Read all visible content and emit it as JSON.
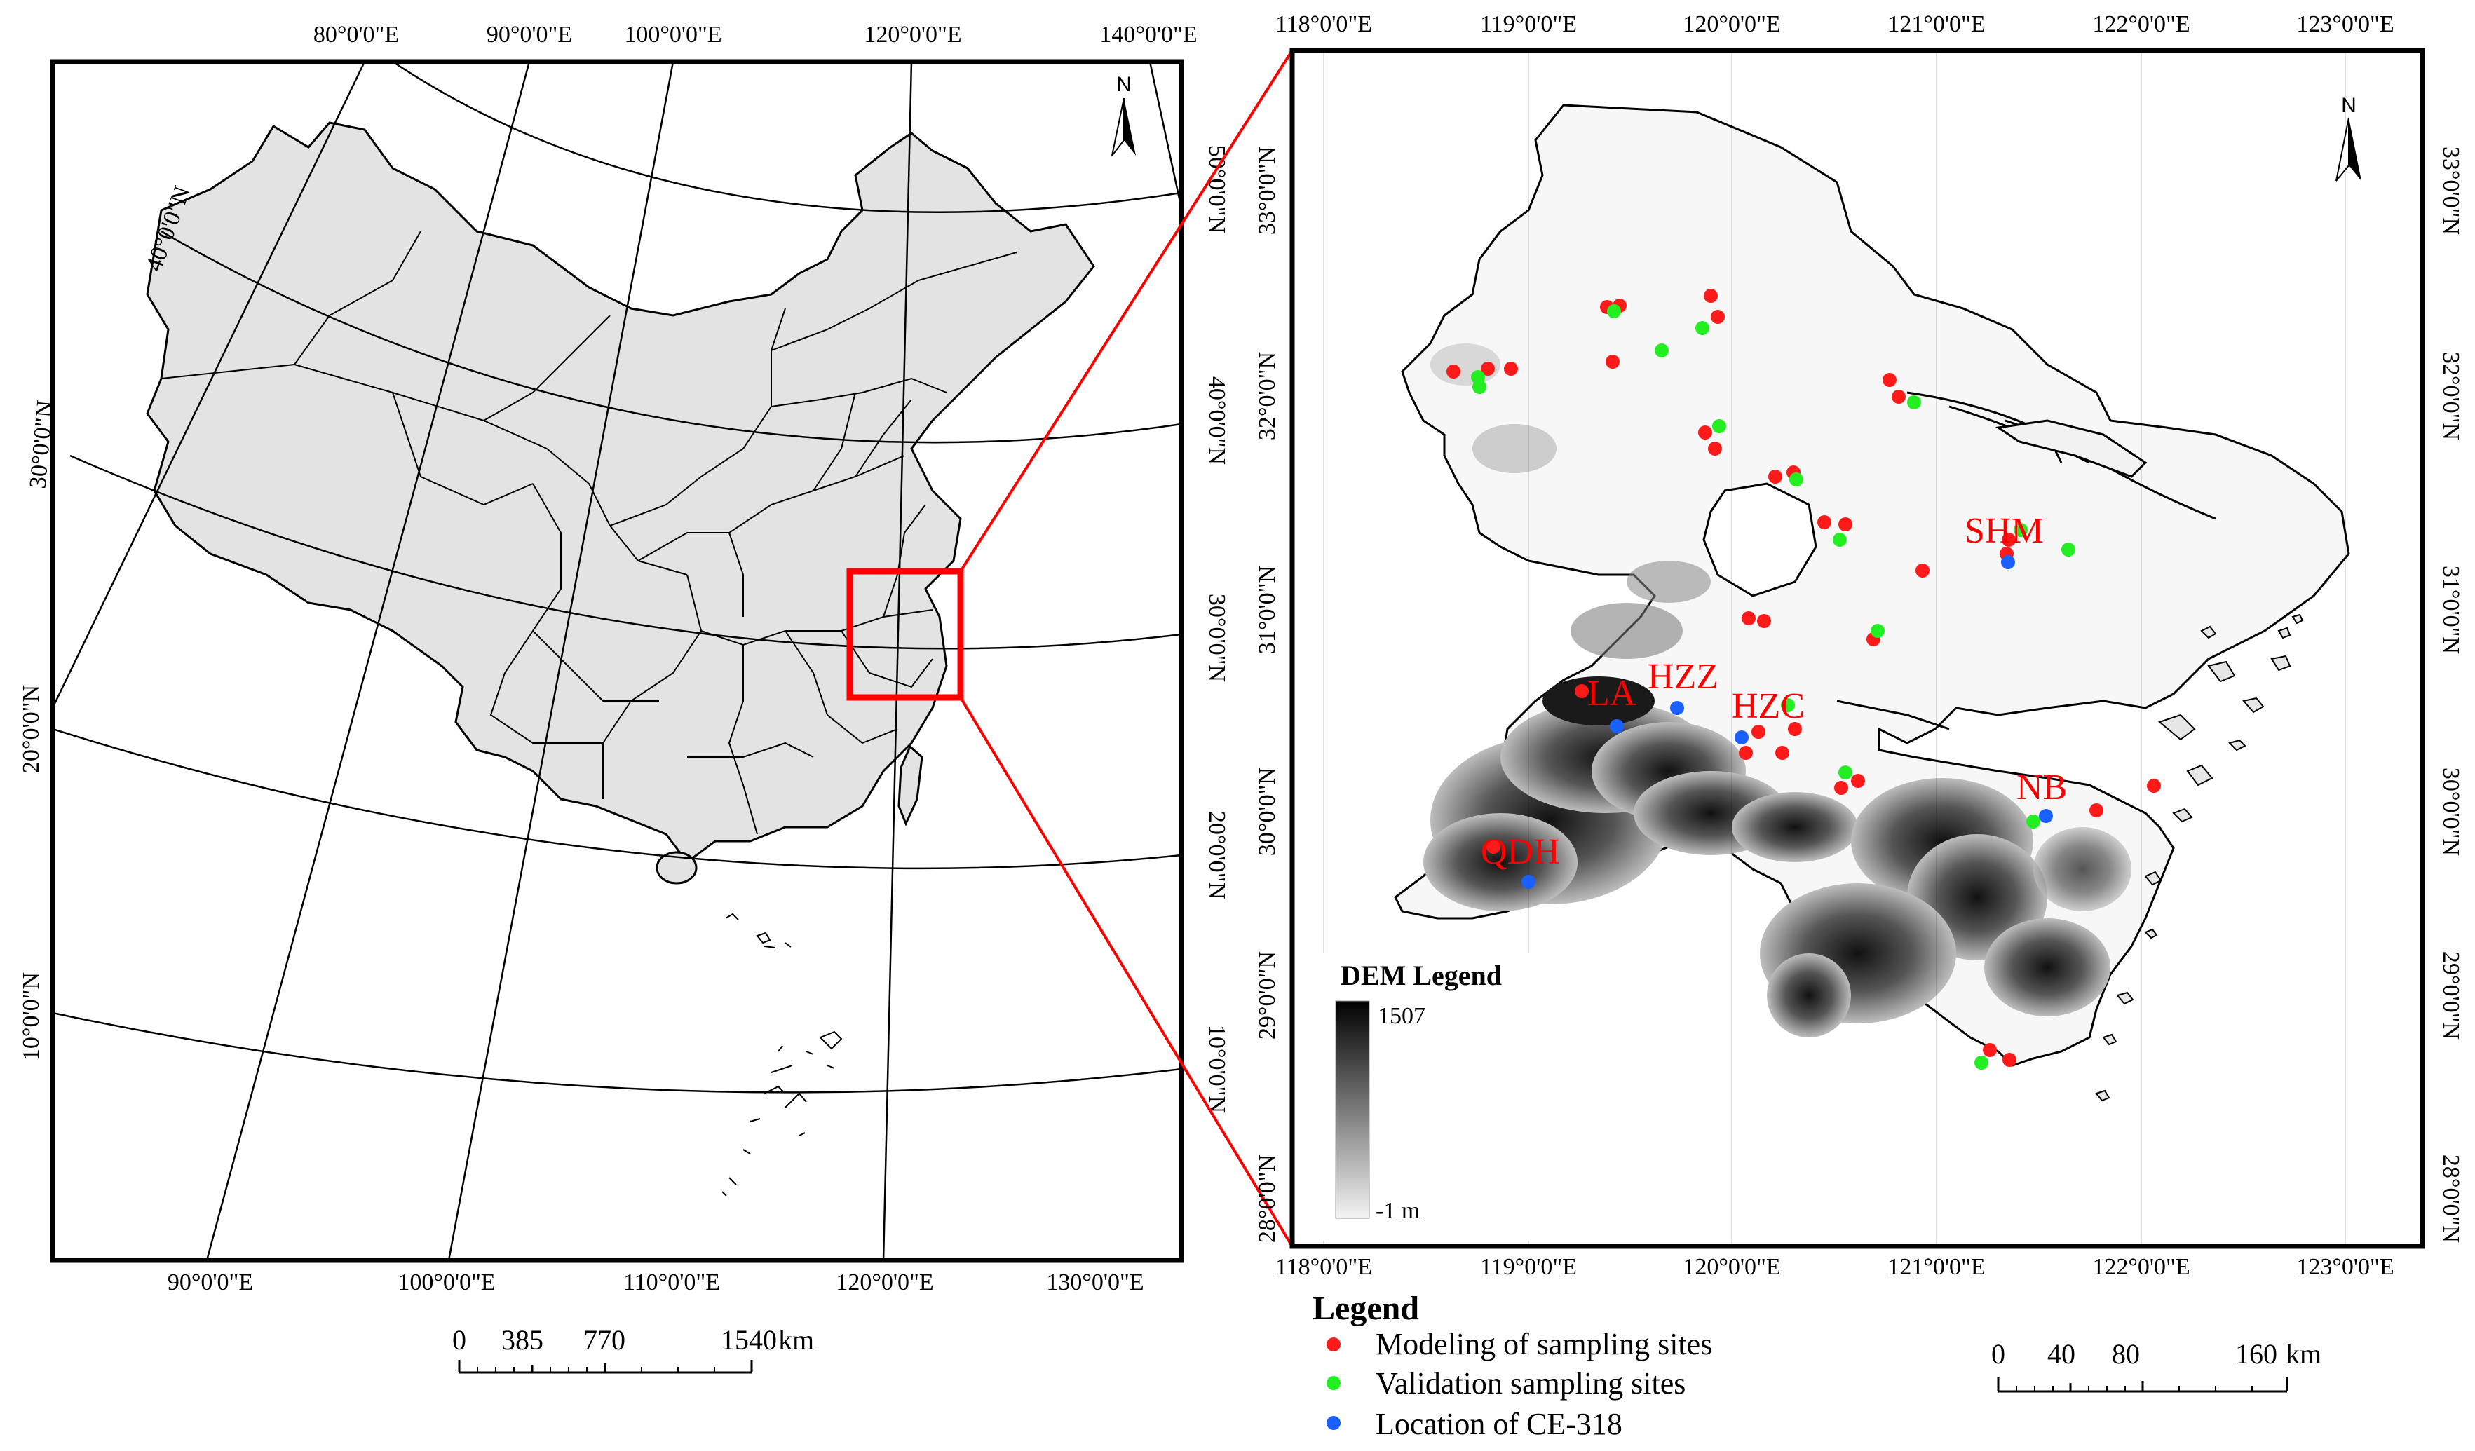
{
  "left_map": {
    "top_lon_labels": [
      "80°0'0\"E",
      "90°0'0\"E",
      "100°0'0\"E",
      "120°0'0\"E",
      "140°0'0\"E"
    ],
    "bottom_lon_labels": [
      "90°0'0\"E",
      "100°0'0\"E",
      "110°0'0\"E",
      "120°0'0\"E",
      "130°0'0\"E"
    ],
    "left_lat_labels": [
      "40°0'0\"N",
      "30°0'0\"N",
      "20°0'0\"N",
      "10°0'0\"N"
    ],
    "right_lat_labels": [
      "50°0'0\"N",
      "40°0'0\"N",
      "30°0'0\"N",
      "20°0'0\"N",
      "10°0'0\"N"
    ],
    "north": "N",
    "scale": {
      "labels": [
        "0",
        "385",
        "770",
        "1540"
      ],
      "unit": "km"
    }
  },
  "right_map": {
    "top_lon_labels": [
      "118°0'0\"E",
      "119°0'0\"E",
      "120°0'0\"E",
      "121°0'0\"E",
      "122°0'0\"E",
      "123°0'0\"E"
    ],
    "bottom_lon_labels": [
      "118°0'0\"E",
      "119°0'0\"E",
      "120°0'0\"E",
      "121°0'0\"E",
      "122°0'0\"E",
      "123°0'0\"E"
    ],
    "lat_labels": [
      "33°0'0\"N",
      "32°0'0\"N",
      "31°0'0\"N",
      "30°0'0\"N",
      "29°0'0\"N",
      "28°0'0\"N"
    ],
    "north": "N",
    "dem_legend": {
      "title": "DEM Legend",
      "max": "1507",
      "min": "-1 m"
    },
    "site_labels": [
      "SHM",
      "LA",
      "HZZ",
      "HZC",
      "NB",
      "QDH"
    ],
    "scale": {
      "labels": [
        "0",
        "40",
        "80",
        "160"
      ],
      "unit": "km"
    }
  },
  "legend": {
    "title": "Legend",
    "items": [
      {
        "label": "Modeling of sampling sites",
        "color": "#ff1a1a"
      },
      {
        "label": "Validation sampling sites",
        "color": "#22ee22"
      },
      {
        "label": "Location of CE-318",
        "color": "#1a5fff"
      }
    ]
  },
  "colors": {
    "land": "#e3e3e3",
    "highlight": "#ff0000",
    "frame": "#000000"
  }
}
